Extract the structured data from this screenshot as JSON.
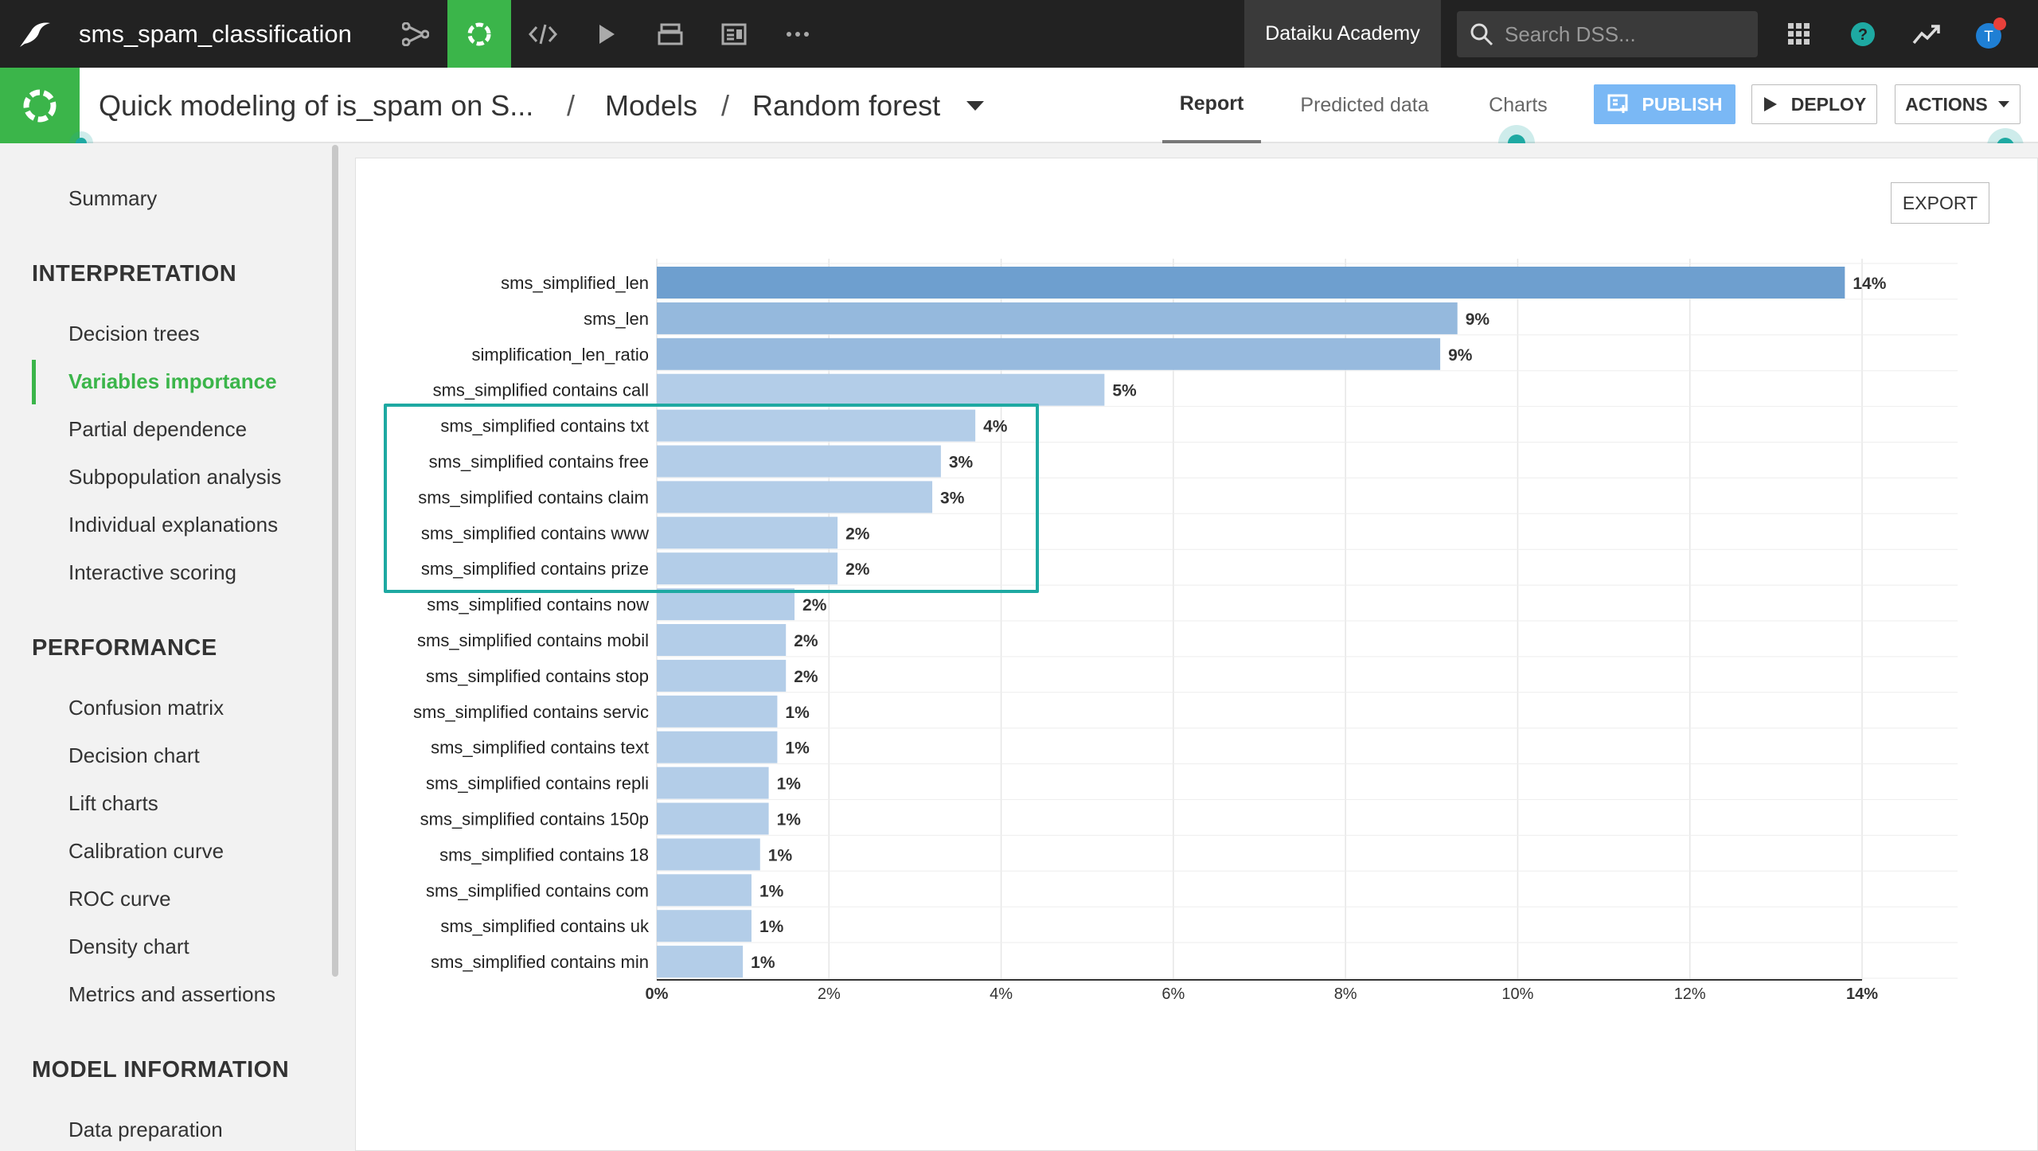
{
  "topbar": {
    "project_name": "sms_spam_classification",
    "academy_label": "Dataiku Academy",
    "search_placeholder": "Search DSS...",
    "avatar_letter": "T"
  },
  "subbar": {
    "analysis_title": "Quick modeling of is_spam on S...",
    "separator": "/",
    "models_label": "Models",
    "model_name": "Random forest",
    "tabs": [
      "Report",
      "Predicted data",
      "Charts"
    ],
    "publish_label": "PUBLISH",
    "deploy_label": "DEPLOY",
    "actions_label": "ACTIONS"
  },
  "sidebar": {
    "summary": "Summary",
    "sections": [
      {
        "title": "INTERPRETATION",
        "items": [
          "Decision trees",
          "Variables importance",
          "Partial dependence",
          "Subpopulation analysis",
          "Individual explanations",
          "Interactive scoring"
        ]
      },
      {
        "title": "PERFORMANCE",
        "items": [
          "Confusion matrix",
          "Decision chart",
          "Lift charts",
          "Calibration curve",
          "ROC curve",
          "Density chart",
          "Metrics and assertions"
        ]
      },
      {
        "title": "MODEL INFORMATION",
        "items": [
          "Data preparation"
        ]
      }
    ],
    "active_item": "Variables importance"
  },
  "main": {
    "export_label": "EXPORT"
  },
  "colors": {
    "accent_green": "#3bb54a",
    "highlight_teal": "#1ea9a2",
    "bar_dark": "#6e9fcf",
    "bar_light": "#b3cde8"
  },
  "chart_data": {
    "type": "bar",
    "orientation": "horizontal",
    "categories": [
      "sms_simplified_len",
      "sms_len",
      "simplification_len_ratio",
      "sms_simplified contains call",
      "sms_simplified contains txt",
      "sms_simplified contains free",
      "sms_simplified contains claim",
      "sms_simplified contains www",
      "sms_simplified contains prize",
      "sms_simplified contains now",
      "sms_simplified contains mobil",
      "sms_simplified contains stop",
      "sms_simplified contains servic",
      "sms_simplified contains text",
      "sms_simplified contains repli",
      "sms_simplified contains 150p",
      "sms_simplified contains 18",
      "sms_simplified contains com",
      "sms_simplified contains uk",
      "sms_simplified contains min"
    ],
    "values": [
      13.8,
      9.3,
      9.1,
      5.2,
      3.7,
      3.3,
      3.2,
      2.1,
      2.1,
      1.6,
      1.5,
      1.5,
      1.4,
      1.4,
      1.3,
      1.3,
      1.2,
      1.1,
      1.1,
      1.0
    ],
    "value_labels": [
      "14%",
      "9%",
      "9%",
      "5%",
      "4%",
      "3%",
      "3%",
      "2%",
      "2%",
      "2%",
      "2%",
      "2%",
      "1%",
      "1%",
      "1%",
      "1%",
      "1%",
      "1%",
      "1%",
      "1%"
    ],
    "x_ticks": [
      "0%",
      "2%",
      "4%",
      "6%",
      "8%",
      "10%",
      "12%",
      "14%"
    ],
    "x_tick_values": [
      0,
      2,
      4,
      6,
      8,
      10,
      12,
      14
    ],
    "xlim": [
      0,
      14
    ],
    "grid": true,
    "highlighted_range": [
      4,
      8
    ]
  }
}
